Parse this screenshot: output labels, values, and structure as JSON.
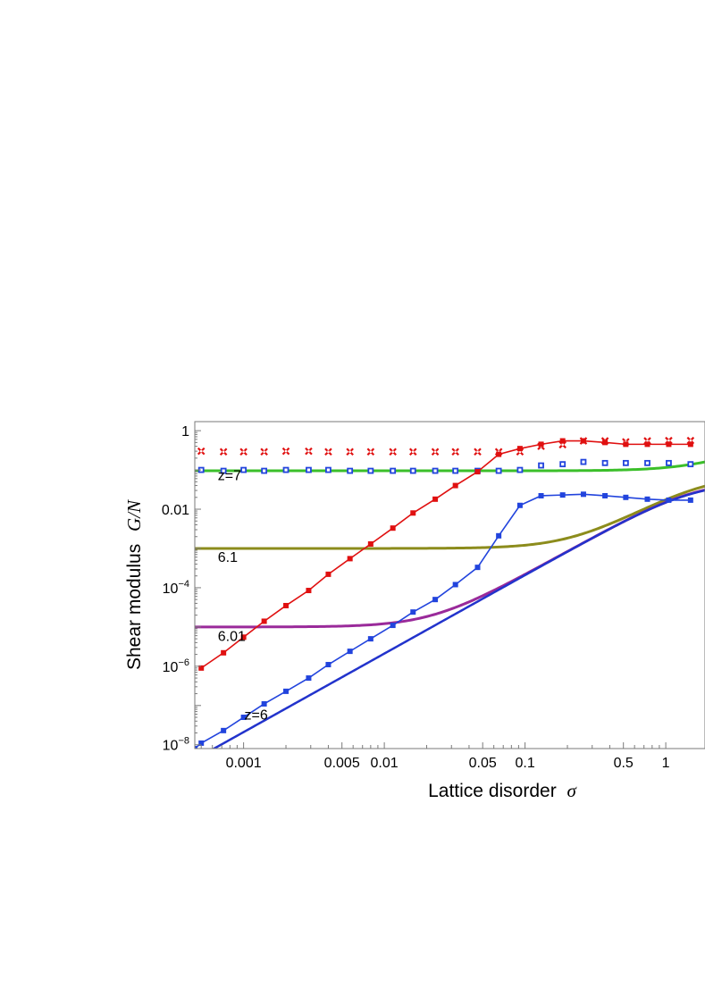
{
  "chart_data": {
    "type": "line",
    "x_scale": "log",
    "y_scale": "log",
    "xlim": [
      0.00045,
      1.9
    ],
    "ylim": [
      8e-09,
      1.7
    ],
    "grid": false,
    "xlabel_text": "Lattice disorder",
    "xlabel_symbol": "σ",
    "ylabel_text": "Shear modulus",
    "ylabel_symbol": "G/N",
    "xticks": [
      {
        "value": 0.001,
        "label": "0.001"
      },
      {
        "value": 0.005,
        "label": "0.005"
      },
      {
        "value": 0.01,
        "label": "0.01"
      },
      {
        "value": 0.05,
        "label": "0.05"
      },
      {
        "value": 0.1,
        "label": "0.1"
      },
      {
        "value": 0.5,
        "label": "0.5"
      },
      {
        "value": 1,
        "label": "1"
      }
    ],
    "yticks": [
      {
        "value": 1,
        "base": "1",
        "exp": ""
      },
      {
        "value": 0.01,
        "base": "0.01",
        "exp": ""
      },
      {
        "value": 0.0001,
        "base": "10",
        "exp": "−4"
      },
      {
        "value": 1e-06,
        "base": "10",
        "exp": "−6"
      },
      {
        "value": 1e-08,
        "base": "10",
        "exp": "−8"
      }
    ],
    "annotations": [
      {
        "text": "z=7",
        "x": 0.00055,
        "y": 0.055
      },
      {
        "text": "6.1",
        "x": 0.00055,
        "y": 0.00045
      },
      {
        "text": "6.01",
        "x": 0.00055,
        "y": 4.4e-06
      },
      {
        "text": "z=6",
        "x": 0.00085,
        "y": 4.4e-08
      }
    ],
    "series": [
      {
        "style": "smooth",
        "color": "#3bbf2a",
        "width": 3,
        "y0": 0.095,
        "ysat": 0.45,
        "sc": 0.3,
        "p": 2.5
      },
      {
        "style": "smooth",
        "color": "#8c8c1c",
        "width": 3,
        "y0": 0.001,
        "ysat": 0.075,
        "sc": 0.42,
        "p": 2.5
      },
      {
        "style": "smooth",
        "color": "#9a2a9a",
        "width": 3,
        "y0": 1e-05,
        "ysat": 0.052,
        "sc": 0.47,
        "p": 2.5
      },
      {
        "style": "smooth",
        "color": "#2233cc",
        "width": 2.5,
        "y0": 0.0,
        "ysat": 0.05,
        "sc": 0.48,
        "p": 2.5
      },
      {
        "style": "dotted",
        "color": "#e01010",
        "marker": "x",
        "x": [
          0.0005,
          0.00072,
          0.001,
          0.0014,
          0.002,
          0.0029,
          0.004,
          0.0057,
          0.008,
          0.0115,
          0.016,
          0.023,
          0.032,
          0.046,
          0.065,
          0.092,
          0.13,
          0.185,
          0.26,
          0.37,
          0.52,
          0.74,
          1.05,
          1.5
        ],
        "y": [
          0.3,
          0.29,
          0.29,
          0.29,
          0.3,
          0.3,
          0.29,
          0.29,
          0.29,
          0.29,
          0.29,
          0.29,
          0.29,
          0.29,
          0.29,
          0.29,
          0.4,
          0.44,
          0.55,
          0.55,
          0.52,
          0.55,
          0.56,
          0.56
        ]
      },
      {
        "style": "dotted",
        "color": "#2244dd",
        "marker": "square-open",
        "x": [
          0.0005,
          0.00072,
          0.001,
          0.0014,
          0.002,
          0.0029,
          0.004,
          0.0057,
          0.008,
          0.0115,
          0.016,
          0.023,
          0.032,
          0.046,
          0.065,
          0.092,
          0.13,
          0.185,
          0.26,
          0.37,
          0.52,
          0.74,
          1.05,
          1.5
        ],
        "y": [
          0.1,
          0.095,
          0.1,
          0.095,
          0.1,
          0.1,
          0.1,
          0.095,
          0.095,
          0.095,
          0.095,
          0.095,
          0.095,
          0.095,
          0.095,
          0.1,
          0.13,
          0.14,
          0.16,
          0.15,
          0.15,
          0.15,
          0.15,
          0.14
        ]
      },
      {
        "style": "line-markers",
        "color": "#e01010",
        "marker": "square",
        "x": [
          0.0005,
          0.00072,
          0.001,
          0.0014,
          0.002,
          0.0029,
          0.004,
          0.0057,
          0.008,
          0.0115,
          0.016,
          0.023,
          0.032,
          0.046,
          0.065,
          0.092,
          0.13,
          0.185,
          0.26,
          0.37,
          0.52,
          0.74,
          1.05,
          1.5
        ],
        "y": [
          9e-07,
          2.2e-06,
          5.5e-06,
          1.4e-05,
          3.5e-05,
          8.5e-05,
          0.00022,
          0.00055,
          0.0013,
          0.0033,
          0.008,
          0.018,
          0.04,
          0.09,
          0.25,
          0.35,
          0.45,
          0.55,
          0.55,
          0.5,
          0.45,
          0.45,
          0.45,
          0.45
        ]
      },
      {
        "style": "line-markers",
        "color": "#2244dd",
        "marker": "square",
        "x": [
          0.00045,
          0.0005,
          0.00072,
          0.001,
          0.0014,
          0.002,
          0.0029,
          0.004,
          0.0057,
          0.008,
          0.0115,
          0.016,
          0.023,
          0.032,
          0.046,
          0.065,
          0.092,
          0.13,
          0.185,
          0.26,
          0.37,
          0.52,
          0.74,
          1.05,
          1.5
        ],
        "y": [
          8e-09,
          1.1e-08,
          2.3e-08,
          5e-08,
          1.1e-07,
          2.3e-07,
          5e-07,
          1.1e-06,
          2.4e-06,
          5e-06,
          1.1e-05,
          2.4e-05,
          5e-05,
          0.00012,
          0.00033,
          0.0021,
          0.0125,
          0.022,
          0.023,
          0.024,
          0.022,
          0.02,
          0.018,
          0.017,
          0.017
        ]
      }
    ]
  }
}
